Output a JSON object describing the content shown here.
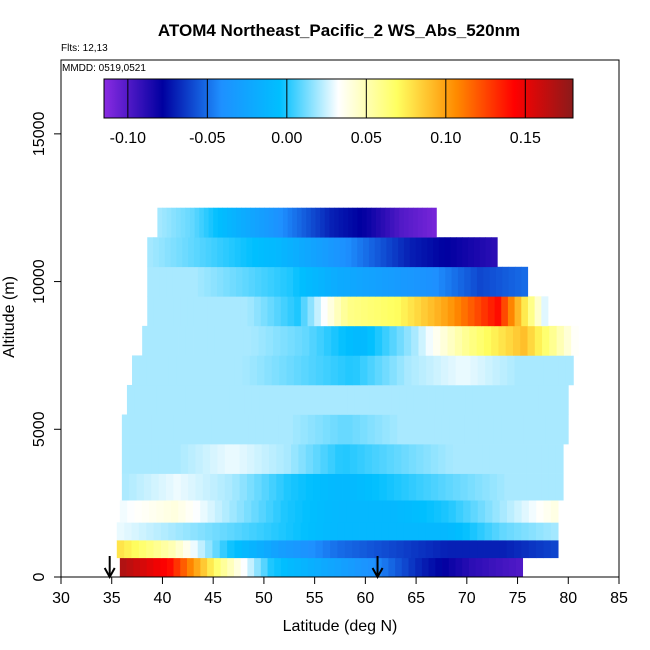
{
  "chart_data": {
    "type": "heatmap",
    "title": "ATOM4 Northeast_Pacific_2 WS_Abs_520nm",
    "flights_note": "Flts: 12,13",
    "date_note": "MMDD: 0519,0521",
    "xlabel": "Latitude (deg N)",
    "ylabel": "Altitude (m)",
    "xlim": [
      30,
      85
    ],
    "ylim": [
      0,
      17500
    ],
    "x_ticks": [
      "30",
      "35",
      "40",
      "45",
      "50",
      "55",
      "60",
      "65",
      "70",
      "75",
      "80",
      "85"
    ],
    "y_ticks": [
      "0",
      "5000",
      "10000",
      "15000"
    ],
    "colorbar": {
      "range": [
        -0.115,
        0.18
      ],
      "ticks": [
        "-0.10",
        "-0.05",
        "0.00",
        "0.05",
        "0.10",
        "0.15"
      ],
      "colors": [
        "#8a2be2",
        "#0000a0",
        "#1e90ff",
        "#00bfff",
        "#ffffff",
        "#ffff60",
        "#ff8c00",
        "#ff0000",
        "#8b1a1a"
      ]
    },
    "arrows_latitude": [
      34.8,
      61.2
    ],
    "cross_section": [
      {
        "alt": 300,
        "lat_start": 35.8,
        "lat_end": 75.5,
        "values": [
          0.17,
          0.14,
          0.06,
          0.0,
          -0.02,
          -0.04,
          -0.07,
          -0.09,
          -0.1
        ]
      },
      {
        "alt": 1000,
        "lat_start": 35.5,
        "lat_end": 79.0,
        "values": [
          0.08,
          0.05,
          0.0,
          -0.03,
          -0.05,
          -0.06,
          -0.07,
          -0.07,
          -0.06
        ]
      },
      {
        "alt": 1500,
        "lat_start": 35.5,
        "lat_end": 79.0,
        "values": [
          0.03,
          0.02,
          0.01,
          0.0,
          -0.01,
          -0.01,
          -0.01,
          0.01,
          0.02
        ]
      },
      {
        "alt": 2200,
        "lat_start": 35.8,
        "lat_end": 79.0,
        "values": [
          0.03,
          0.04,
          0.02,
          0.0,
          -0.01,
          -0.01,
          0.0,
          0.02,
          0.04
        ]
      },
      {
        "alt": 3000,
        "lat_start": 36.0,
        "lat_end": 79.5,
        "values": [
          0.02,
          0.03,
          0.02,
          0.0,
          -0.01,
          0.0,
          0.01,
          0.02,
          0.02
        ]
      },
      {
        "alt": 4000,
        "lat_start": 36.0,
        "lat_end": 79.5,
        "values": [
          0.02,
          0.02,
          0.03,
          0.02,
          0.0,
          0.01,
          0.02,
          0.02,
          0.02
        ]
      },
      {
        "alt": 5000,
        "lat_start": 36.0,
        "lat_end": 80.0,
        "values": [
          0.02,
          0.02,
          0.02,
          0.02,
          0.01,
          0.02,
          0.02,
          0.02,
          0.02
        ]
      },
      {
        "alt": 6000,
        "lat_start": 36.5,
        "lat_end": 80.0,
        "values": [
          0.02,
          0.02,
          0.02,
          0.02,
          0.02,
          0.02,
          0.02,
          0.02,
          0.02
        ]
      },
      {
        "alt": 7000,
        "lat_start": 37.0,
        "lat_end": 80.5,
        "values": [
          0.02,
          0.02,
          0.02,
          0.01,
          0.0,
          0.02,
          0.03,
          0.02,
          0.02
        ]
      },
      {
        "alt": 8000,
        "lat_start": 38.0,
        "lat_end": 81.0,
        "values": [
          0.02,
          0.02,
          0.02,
          0.01,
          -0.01,
          0.02,
          0.06,
          0.09,
          0.03
        ]
      },
      {
        "alt": 9000,
        "lat_start": 38.5,
        "lat_end": 78.0,
        "values": [
          0.02,
          0.02,
          0.02,
          0.0,
          0.06,
          0.07,
          0.1,
          0.14,
          0.02
        ]
      },
      {
        "alt": 10000,
        "lat_start": 38.5,
        "lat_end": 76.0,
        "values": [
          0.02,
          0.02,
          0.01,
          0.0,
          -0.02,
          -0.03,
          -0.04,
          -0.06,
          -0.05
        ]
      },
      {
        "alt": 11000,
        "lat_start": 38.5,
        "lat_end": 73.0,
        "values": [
          0.02,
          0.01,
          0.0,
          -0.01,
          -0.03,
          -0.05,
          -0.07,
          -0.08,
          -0.09
        ]
      },
      {
        "alt": 12000,
        "lat_start": 39.5,
        "lat_end": 67.0,
        "values": [
          0.02,
          0.01,
          -0.01,
          -0.03,
          -0.05,
          -0.07,
          -0.08,
          -0.1,
          -0.11
        ]
      }
    ]
  }
}
